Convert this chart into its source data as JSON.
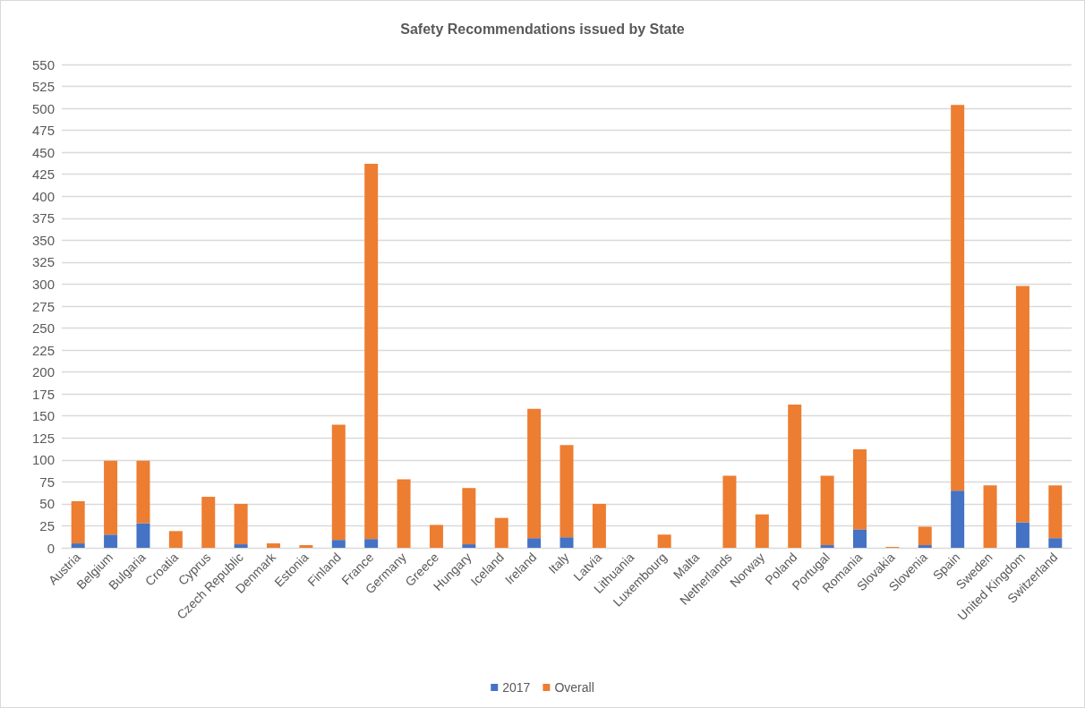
{
  "chart_data": {
    "type": "bar",
    "title": "Safety Recommendations issued by State",
    "categories": [
      "Austria",
      "Belgium",
      "Bulgaria",
      "Croatia",
      "Cyprus",
      "Czech Republic",
      "Denmark",
      "Estonia",
      "Finland",
      "France",
      "Germany",
      "Greece",
      "Hungary",
      "Iceland",
      "Ireland",
      "Italy",
      "Latvia",
      "Lithuania",
      "Luxembourg",
      "Malta",
      "Netherlands",
      "Norway",
      "Poland",
      "Portugal",
      "Romania",
      "Slovakia",
      "Slovenia",
      "Spain",
      "Sweden",
      "United Kingdom",
      "Switzerland"
    ],
    "series": [
      {
        "name": "2017",
        "color": "#4472c4",
        "values": [
          5,
          15,
          28,
          0,
          0,
          4,
          0,
          0,
          9,
          10,
          0,
          0,
          4,
          0,
          11,
          12,
          0,
          0,
          0,
          0,
          0,
          0,
          0,
          3,
          21,
          0,
          3,
          65,
          0,
          29,
          11
        ]
      },
      {
        "name": "Overall",
        "color": "#ed7d31",
        "values": [
          48,
          84,
          71,
          19,
          58,
          46,
          5,
          3,
          131,
          427,
          78,
          26,
          64,
          34,
          147,
          105,
          50,
          0,
          15,
          0,
          82,
          38,
          163,
          79,
          91,
          1,
          21,
          439,
          71,
          269,
          60
        ]
      }
    ],
    "stacked": true,
    "ylim": [
      0,
      550
    ],
    "yticks": [
      0,
      25,
      50,
      75,
      100,
      125,
      150,
      175,
      200,
      225,
      250,
      275,
      300,
      325,
      350,
      375,
      400,
      425,
      450,
      475,
      500,
      525,
      550
    ],
    "grid": "y",
    "legend": "bottom"
  }
}
